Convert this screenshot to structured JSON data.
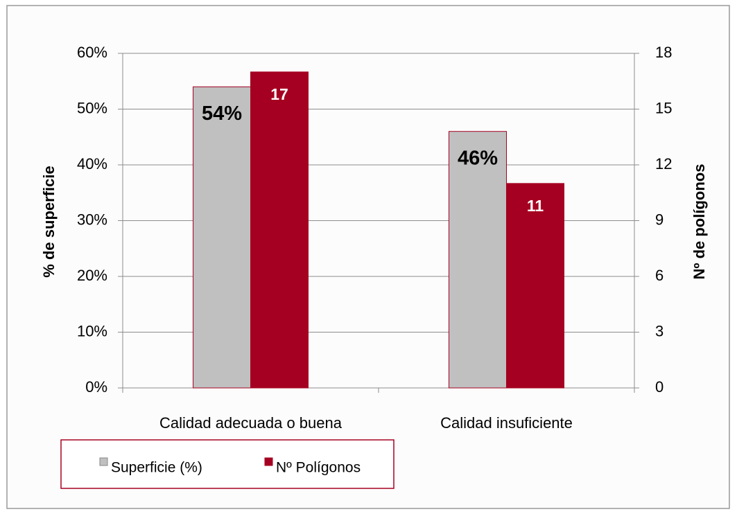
{
  "chart_data": {
    "type": "bar",
    "categories": [
      "Calidad adecuada o buena",
      "Calidad insuficiente"
    ],
    "series": [
      {
        "name": "Superficie (%)",
        "color": "#c0c0c0",
        "values": [
          54,
          46
        ],
        "value_labels": [
          "54%",
          "46%"
        ]
      },
      {
        "name": "Nº Polígonos",
        "color": "#a50021",
        "values": [
          17,
          11
        ],
        "axis": "y2"
      }
    ],
    "ylabel": "% de superficie",
    "y2label": "Nº de polígonos",
    "ylim": [
      0,
      60
    ],
    "yticks": [
      {
        "value": 0,
        "label": "0%"
      },
      {
        "value": 10,
        "label": "10%"
      },
      {
        "value": 20,
        "label": "20%"
      },
      {
        "value": 30,
        "label": "30%"
      },
      {
        "value": 40,
        "label": "40%"
      },
      {
        "value": 50,
        "label": "50%"
      },
      {
        "value": 60,
        "label": "60%"
      }
    ],
    "y2lim": [
      0,
      18
    ],
    "y2ticks": [
      0,
      3,
      6,
      9,
      12,
      15,
      18
    ],
    "grid": true,
    "legend": "bottom"
  }
}
